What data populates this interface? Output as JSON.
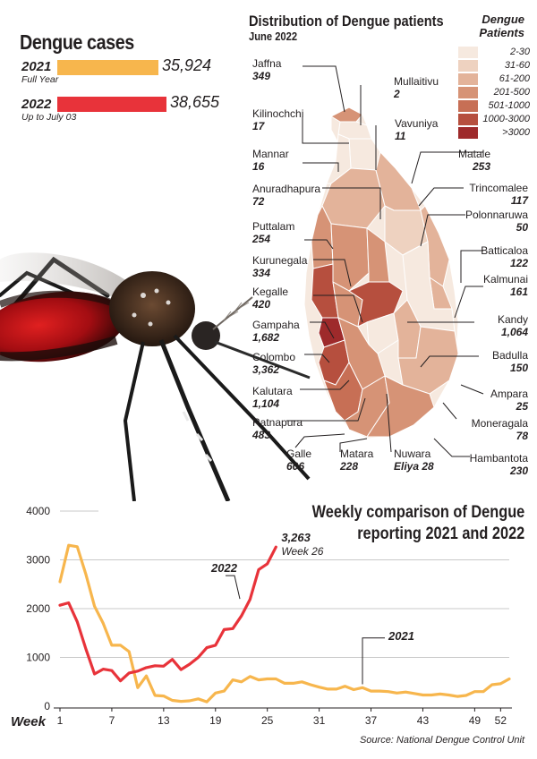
{
  "header": {
    "title": "Dengue cases",
    "bars": [
      {
        "year": "2021",
        "sub": "Full Year",
        "value_label": "35,924",
        "value": 35924,
        "color": "#f7b64d"
      },
      {
        "year": "2022",
        "sub": "Up to July 03",
        "value_label": "38,655",
        "value": 38655,
        "color": "#e8333a"
      }
    ]
  },
  "map": {
    "title": "Distribution of Dengue patients",
    "subtitle": "June 2022",
    "legend_title_line1": "Dengue",
    "legend_title_line2": "Patients",
    "legend": [
      {
        "label": "2-30",
        "color": "#f6e9df"
      },
      {
        "label": "31-60",
        "color": "#eed2c0"
      },
      {
        "label": "61-200",
        "color": "#e3b39a"
      },
      {
        "label": "201-500",
        "color": "#d69376"
      },
      {
        "label": "501-1000",
        "color": "#c76f55"
      },
      {
        "label": "1000-3000",
        "color": "#b64f3e"
      },
      {
        "label": ">3000",
        "color": "#9e2a2b"
      }
    ],
    "districts": [
      {
        "name": "Jaffna",
        "value": "349"
      },
      {
        "name": "Mullaitivu",
        "value": "2"
      },
      {
        "name": "Kilinochchi",
        "value": "17"
      },
      {
        "name": "Vavuniya",
        "value": "11"
      },
      {
        "name": "Mannar",
        "value": "16"
      },
      {
        "name": "Matale",
        "value": "253"
      },
      {
        "name": "Anuradhapura",
        "value": "72"
      },
      {
        "name": "Trincomalee",
        "value": "117"
      },
      {
        "name": "Polonnaruwa",
        "value": "50"
      },
      {
        "name": "Puttalam",
        "value": "254"
      },
      {
        "name": "Batticaloa",
        "value": "122"
      },
      {
        "name": "Kurunegala",
        "value": "334"
      },
      {
        "name": "Kalmunai",
        "value": "161"
      },
      {
        "name": "Kegalle",
        "value": "420"
      },
      {
        "name": "Gampaha",
        "value": "1,682"
      },
      {
        "name": "Kandy",
        "value": "1,064"
      },
      {
        "name": "Colombo",
        "value": "3,362"
      },
      {
        "name": "Badulla",
        "value": "150"
      },
      {
        "name": "Kalutara",
        "value": "1,104"
      },
      {
        "name": "Ampara",
        "value": "25"
      },
      {
        "name": "Ratnapura",
        "value": "483"
      },
      {
        "name": "Moneragala",
        "value": "78"
      },
      {
        "name": "Galle",
        "value": "606"
      },
      {
        "name": "Matara",
        "value": "228"
      },
      {
        "name": "Nuwara Eliya",
        "value": "28"
      },
      {
        "name": "Hambantota",
        "value": "230"
      }
    ]
  },
  "chart_data": {
    "type": "line",
    "title": "Weekly comparison of Dengue reporting 2021 and 2022",
    "xlabel": "Week",
    "ylabel": "",
    "ylim": [
      0,
      4000
    ],
    "y_ticks": [
      "0",
      "1000",
      "2000",
      "3000",
      "4000"
    ],
    "x_ticks": [
      "1",
      "7",
      "13",
      "19",
      "25",
      "31",
      "37",
      "43",
      "49",
      "52"
    ],
    "series": [
      {
        "name": "2021",
        "color": "#f7b64d",
        "x": [
          1,
          2,
          3,
          4,
          5,
          6,
          7,
          8,
          9,
          10,
          11,
          12,
          13,
          14,
          15,
          16,
          17,
          18,
          19,
          20,
          21,
          22,
          23,
          24,
          25,
          26,
          27,
          28,
          29,
          30,
          31,
          32,
          33,
          34,
          35,
          36,
          37,
          38,
          39,
          40,
          41,
          42,
          43,
          44,
          45,
          46,
          47,
          48,
          49,
          50,
          51,
          52,
          53
        ],
        "y": [
          2550,
          3300,
          3270,
          2700,
          2050,
          1700,
          1250,
          1250,
          1120,
          380,
          620,
          220,
          210,
          120,
          100,
          110,
          150,
          90,
          270,
          310,
          540,
          500,
          610,
          540,
          560,
          560,
          470,
          470,
          500,
          440,
          390,
          350,
          350,
          410,
          340,
          380,
          310,
          310,
          300,
          270,
          290,
          260,
          230,
          230,
          250,
          230,
          200,
          220,
          300,
          300,
          440,
          460,
          560
        ]
      },
      {
        "name": "2022",
        "color": "#e8333a",
        "x": [
          1,
          2,
          3,
          4,
          5,
          6,
          7,
          8,
          9,
          10,
          11,
          12,
          13,
          14,
          15,
          16,
          17,
          18,
          19,
          20,
          21,
          22,
          23,
          24,
          25,
          26
        ],
        "y": [
          2070,
          2120,
          1730,
          1170,
          660,
          760,
          730,
          520,
          680,
          720,
          790,
          830,
          820,
          960,
          750,
          860,
          1000,
          1200,
          1250,
          1570,
          1590,
          1850,
          2190,
          2800,
          2920,
          3263
        ]
      }
    ],
    "annotations": [
      {
        "text": "3,263",
        "sub": "Week 26"
      },
      {
        "text": "2022"
      },
      {
        "text": "2021"
      }
    ],
    "source": "Source: National Dengue Control Unit"
  }
}
